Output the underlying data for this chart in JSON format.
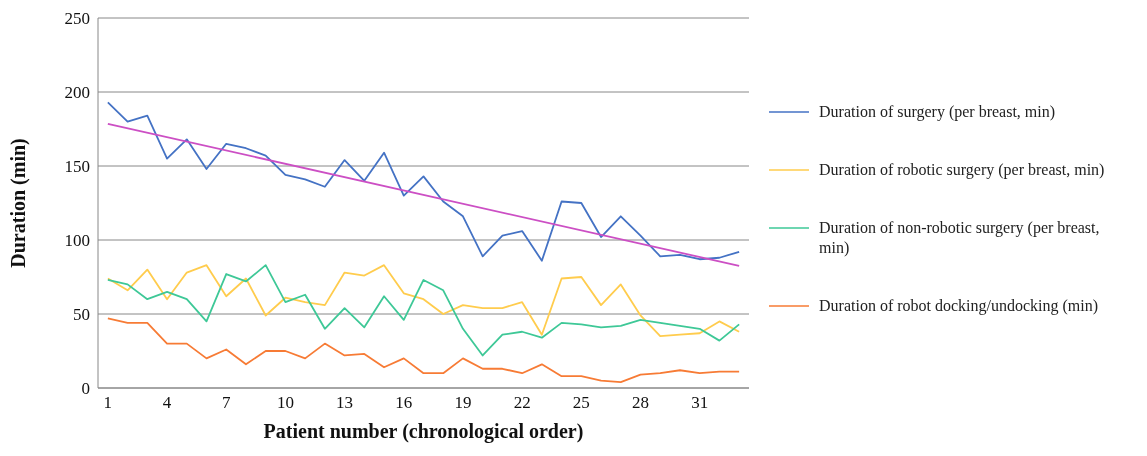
{
  "chart_data": {
    "type": "line",
    "xlabel": "Patient number (chronological order)",
    "ylabel": "Duration (min)",
    "x": [
      1,
      2,
      3,
      4,
      5,
      6,
      7,
      8,
      9,
      10,
      11,
      12,
      13,
      14,
      15,
      16,
      17,
      18,
      19,
      20,
      21,
      22,
      23,
      24,
      25,
      26,
      27,
      28,
      29,
      30,
      31,
      32,
      33
    ],
    "xlim": [
      0.5,
      33.5
    ],
    "xticks": [
      1,
      4,
      7,
      10,
      13,
      16,
      19,
      22,
      25,
      28,
      31
    ],
    "ylim": [
      0,
      250
    ],
    "yticks": [
      0,
      50,
      100,
      150,
      200,
      250
    ],
    "grid": "y",
    "legend": "right",
    "marker": "none",
    "line_style": "solid",
    "series": [
      {
        "name": "Duration of surgery (per breast, min)",
        "color": "#4472c4",
        "values": [
          193,
          180,
          184,
          155,
          168,
          148,
          165,
          162,
          157,
          144,
          141,
          136,
          154,
          140,
          159,
          130,
          143,
          126,
          116,
          89,
          103,
          106,
          86,
          126,
          125,
          102,
          116,
          103,
          89,
          90,
          87,
          88,
          92
        ]
      },
      {
        "name": "Duration of robotic surgery (per breast, min)",
        "color": "#ffcc4d",
        "values": [
          74,
          66,
          80,
          60,
          78,
          83,
          62,
          74,
          49,
          61,
          58,
          56,
          78,
          76,
          83,
          64,
          60,
          50,
          56,
          54,
          54,
          58,
          36,
          74,
          75,
          56,
          70,
          49,
          35,
          36,
          37,
          45,
          38
        ]
      },
      {
        "name": "Duration of non-robotic surgery (per breast, min)",
        "color": "#3ec897",
        "values": [
          73,
          70,
          60,
          65,
          60,
          45,
          77,
          72,
          83,
          58,
          63,
          40,
          54,
          41,
          62,
          46,
          73,
          66,
          40,
          22,
          36,
          38,
          34,
          44,
          43,
          41,
          42,
          46,
          44,
          42,
          40,
          32,
          43
        ]
      },
      {
        "name": "Duration of robot docking/undocking (min)",
        "color": "#f77b35",
        "values": [
          47,
          44,
          44,
          30,
          30,
          20,
          26,
          16,
          25,
          25,
          20,
          30,
          22,
          23,
          14,
          20,
          10,
          10,
          20,
          13,
          13,
          10,
          16,
          8,
          8,
          5,
          4,
          9,
          10,
          12,
          10,
          11,
          11
        ]
      },
      {
        "type": "line",
        "color": "#cc4fc4",
        "x": [
          1,
          33
        ],
        "values": [
          178.5,
          82.5
        ]
      }
    ]
  }
}
